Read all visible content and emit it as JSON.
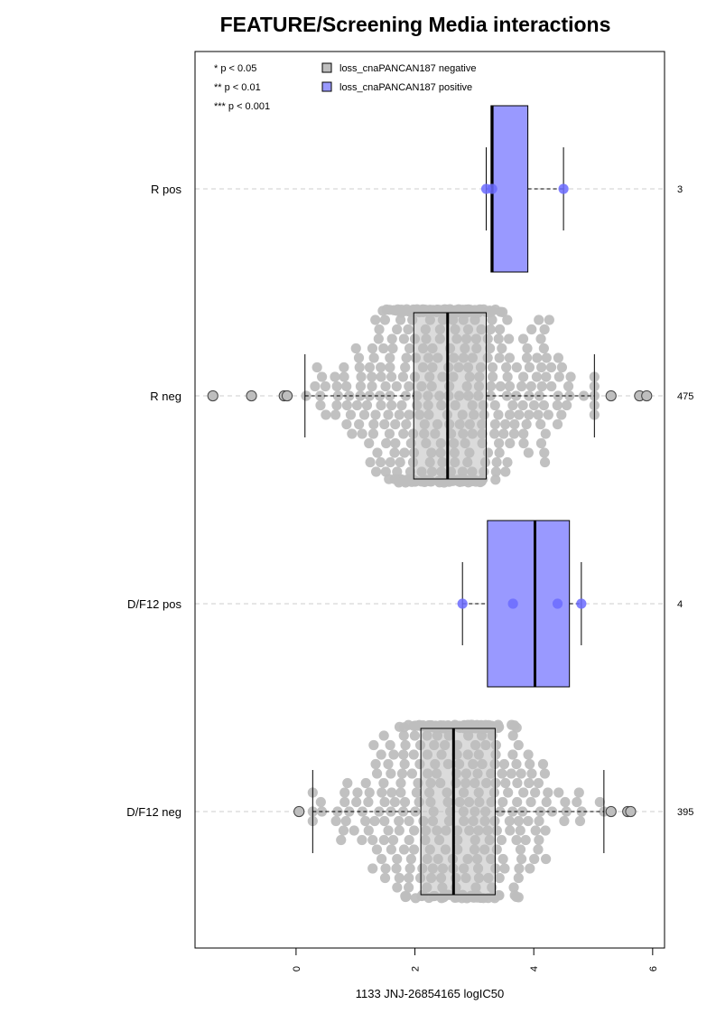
{
  "chart_data": {
    "type": "box",
    "title": "FEATURE/Screening Media interactions",
    "xlabel": "1133 JNJ-26854165 logIC50",
    "xlim": [
      -1.7,
      6.2
    ],
    "xticks": [
      0,
      2,
      4,
      6
    ],
    "categories": [
      "R pos",
      "R neg",
      "D/F12 pos",
      "D/F12 neg"
    ],
    "counts": [
      "3",
      "475",
      "4",
      "395"
    ],
    "significance_legend": [
      "* p < 0.05",
      "** p < 0.01",
      "*** p < 0.001"
    ],
    "legend": [
      {
        "label": "loss_cnaPANCAN187 negative",
        "color": "#bebebe"
      },
      {
        "label": "loss_cnaPANCAN187 positive",
        "color": "#9999ff"
      }
    ],
    "legend_placement": "top-left",
    "boxes": [
      {
        "category": "R pos",
        "group": "positive",
        "whisker_low": 3.2,
        "q1": 3.28,
        "median": 3.3,
        "q3": 3.9,
        "whisker_high": 4.5,
        "points": [
          3.2,
          3.3,
          4.5
        ],
        "outliers": []
      },
      {
        "category": "R neg",
        "group": "negative",
        "whisker_low": 0.15,
        "q1": 1.98,
        "median": 2.55,
        "q3": 3.2,
        "whisker_high": 5.02,
        "points_n": 475,
        "outliers": [
          -1.4,
          -0.75,
          -0.2,
          -0.15,
          5.3,
          5.78,
          5.9
        ]
      },
      {
        "category": "D/F12 pos",
        "group": "positive",
        "whisker_low": 2.8,
        "q1": 3.22,
        "median": 4.02,
        "q3": 4.6,
        "whisker_high": 4.8,
        "points": [
          2.8,
          3.65,
          4.4,
          4.8
        ],
        "outliers": []
      },
      {
        "category": "D/F12 neg",
        "group": "negative",
        "whisker_low": 0.28,
        "q1": 2.1,
        "median": 2.65,
        "q3": 3.35,
        "whisker_high": 5.18,
        "points_n": 395,
        "outliers": [
          0.05,
          5.3,
          5.58,
          5.63
        ]
      }
    ],
    "grid": "horizontal dashed at each category"
  }
}
